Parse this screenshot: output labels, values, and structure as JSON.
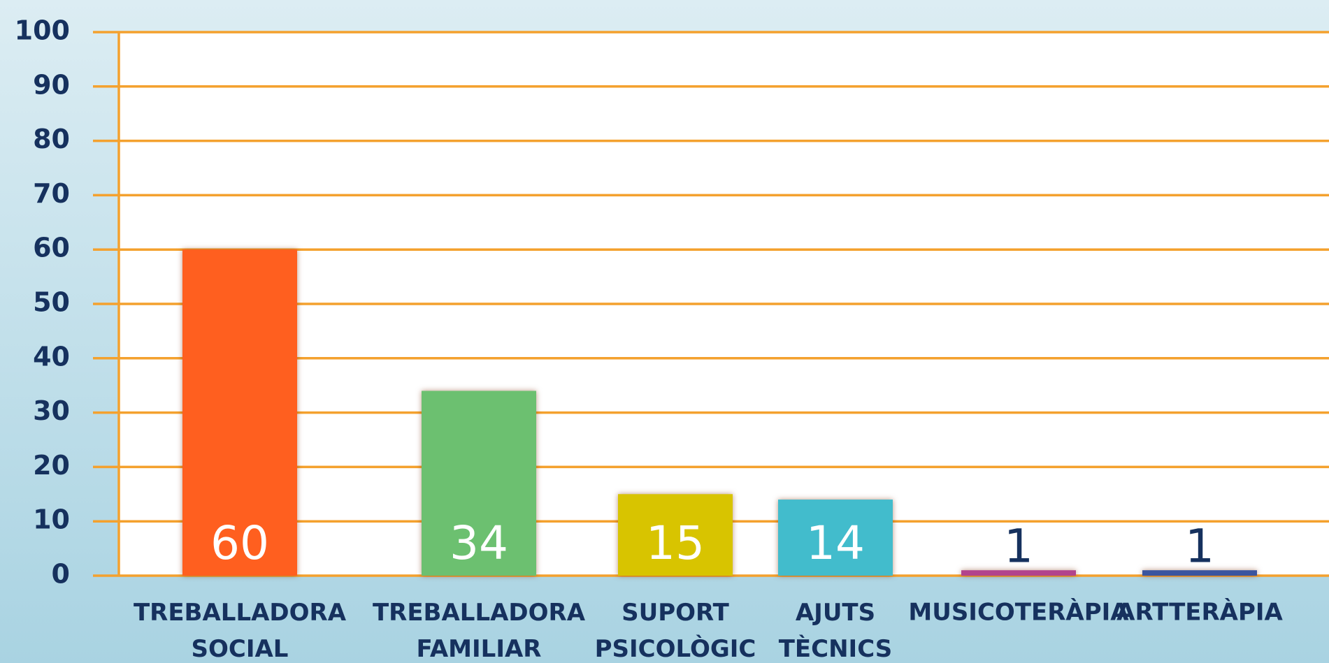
{
  "chart_data": {
    "type": "bar",
    "categories": [
      "TREBALLADORA SOCIAL",
      "TREBALLADORA FAMILIAR",
      "SUPORT PSICOLÒGIC",
      "AJUTS TÈCNICS",
      "MUSICOTERÀPIA",
      "ARTTERÀPIA"
    ],
    "values": [
      60,
      34,
      15,
      14,
      1,
      1
    ],
    "colors": [
      "#ff5f1f",
      "#6cc070",
      "#d8c400",
      "#42bccc",
      "#b2448c",
      "#3b559f"
    ],
    "ylim": [
      0,
      100
    ],
    "yticks": [
      0,
      10,
      20,
      30,
      40,
      50,
      60,
      70,
      80,
      90,
      100
    ],
    "grid": true
  }
}
